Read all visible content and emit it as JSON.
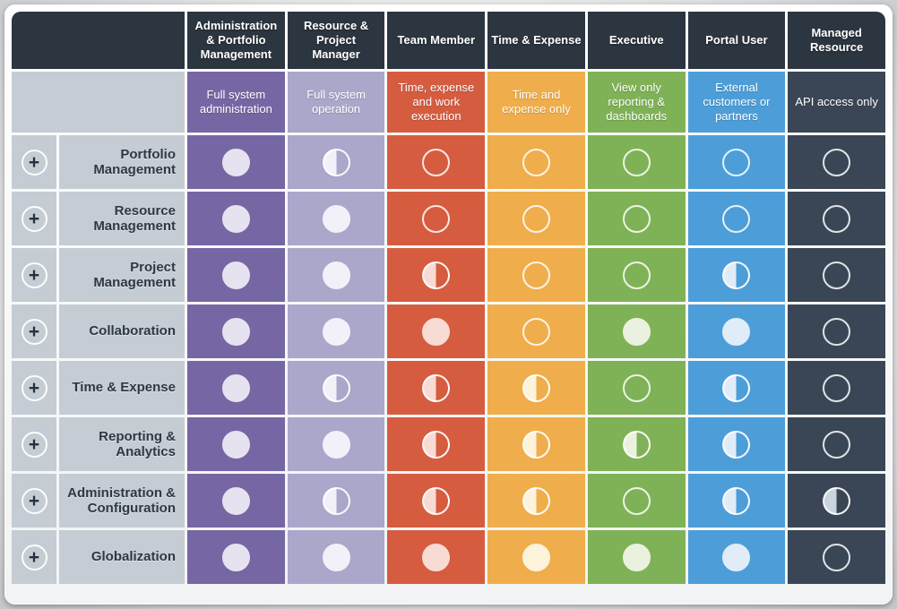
{
  "page": {
    "plus_label": "+"
  },
  "theme": {
    "header_bg": "#2c3641",
    "label_cell_bg": "#c5ccd4",
    "label_text": "#2c3843",
    "grid_line": "#ffffff"
  },
  "columns": [
    {
      "id": "admin-portfolio",
      "label": "Administration & Portfolio Management",
      "description": "Full system administration",
      "color": "#7667a4",
      "tint": "#e7e2f0"
    },
    {
      "id": "resource-project",
      "label": "Resource & Project Manager",
      "description": "Full system operation",
      "color": "#aaa7ca",
      "tint": "#f2f1f9"
    },
    {
      "id": "team-member",
      "label": "Team Member",
      "description": "Time, expense and work execution",
      "color": "#d65c40",
      "tint": "#f8dbd3"
    },
    {
      "id": "time-expense",
      "label": "Time & Expense",
      "description": "Time and expense only",
      "color": "#efae4b",
      "tint": "#fdf2da"
    },
    {
      "id": "executive",
      "label": "Executive",
      "description": "View only reporting & dashboards",
      "color": "#7fb256",
      "tint": "#ebf1df"
    },
    {
      "id": "portal-user",
      "label": "Portal User",
      "description": "External customers or partners",
      "color": "#4d9ed8",
      "tint": "#e0edf8"
    },
    {
      "id": "managed-resource",
      "label": "Managed Resource",
      "description": "API access only",
      "color": "#3a4655",
      "tint": "#c9d4df"
    }
  ],
  "rows": [
    {
      "label": "Portfolio Management",
      "values": [
        "full",
        "half",
        "none",
        "none",
        "none",
        "none",
        "none"
      ]
    },
    {
      "label": "Resource Management",
      "values": [
        "full",
        "full",
        "none",
        "none",
        "none",
        "none",
        "none"
      ]
    },
    {
      "label": "Project Management",
      "values": [
        "full",
        "full",
        "half",
        "none",
        "none",
        "half",
        "none"
      ]
    },
    {
      "label": "Collaboration",
      "values": [
        "full",
        "full",
        "full",
        "none",
        "full",
        "full",
        "none"
      ]
    },
    {
      "label": "Time & Expense",
      "values": [
        "full",
        "half",
        "half",
        "half",
        "none",
        "half",
        "none"
      ]
    },
    {
      "label": "Reporting & Analytics",
      "values": [
        "full",
        "full",
        "half",
        "half",
        "half",
        "half",
        "none"
      ]
    },
    {
      "label": "Administration & Configuration",
      "values": [
        "full",
        "half",
        "half",
        "half",
        "none",
        "half",
        "half"
      ]
    },
    {
      "label": "Globalization",
      "values": [
        "full",
        "full",
        "full",
        "full",
        "full",
        "full",
        "none"
      ]
    }
  ]
}
